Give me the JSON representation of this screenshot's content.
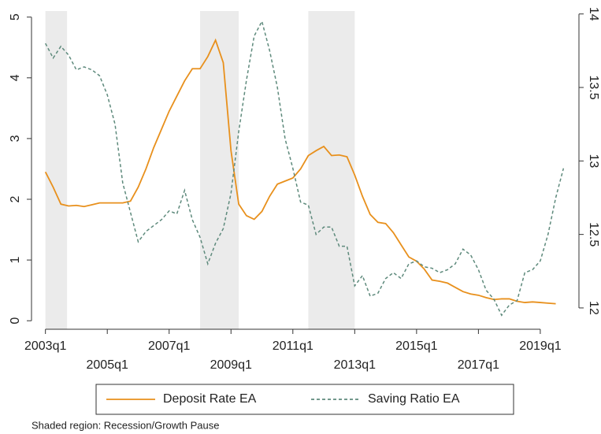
{
  "chart_data": {
    "type": "line",
    "x": [
      2003,
      2003.25,
      2003.5,
      2003.75,
      2004,
      2004.25,
      2004.5,
      2004.75,
      2005,
      2005.25,
      2005.5,
      2005.75,
      2006,
      2006.25,
      2006.5,
      2006.75,
      2007,
      2007.25,
      2007.5,
      2007.75,
      2008,
      2008.25,
      2008.5,
      2008.75,
      2009,
      2009.25,
      2009.5,
      2009.75,
      2010,
      2010.25,
      2010.5,
      2010.75,
      2011,
      2011.25,
      2011.5,
      2011.75,
      2012,
      2012.25,
      2012.5,
      2012.75,
      2013,
      2013.25,
      2013.5,
      2013.75,
      2014,
      2014.25,
      2014.5,
      2014.75,
      2015,
      2015.25,
      2015.5,
      2015.75,
      2016,
      2016.25,
      2016.5,
      2016.75,
      2017,
      2017.25,
      2017.5,
      2017.75,
      2018,
      2018.25,
      2018.5,
      2018.75,
      2019,
      2019.25,
      2019.5,
      2019.75
    ],
    "series": [
      {
        "name": "Deposit Rate EA",
        "color": "#e8901c",
        "axis": "y",
        "values": [
          2.45,
          2.2,
          1.92,
          1.89,
          1.9,
          1.88,
          1.91,
          1.94,
          1.94,
          1.94,
          1.94,
          1.97,
          2.2,
          2.5,
          2.85,
          3.15,
          3.45,
          3.7,
          3.95,
          4.15,
          4.15,
          4.35,
          4.62,
          4.25,
          2.8,
          1.92,
          1.73,
          1.67,
          1.8,
          2.05,
          2.25,
          2.3,
          2.35,
          2.5,
          2.72,
          2.8,
          2.87,
          2.72,
          2.73,
          2.7,
          2.4,
          2.05,
          1.75,
          1.62,
          1.6,
          1.45,
          1.25,
          1.05,
          0.98,
          0.85,
          0.67,
          0.65,
          0.62,
          0.55,
          0.48,
          0.44,
          0.42,
          0.38,
          0.35,
          0.36,
          0.36,
          0.32,
          0.3,
          0.31,
          0.3,
          0.29,
          0.28,
          null
        ]
      },
      {
        "name": "Saving Ratio EA",
        "color": "#5e8a7c",
        "axis": "y2",
        "dashed": true,
        "values": [
          13.8,
          13.7,
          13.78,
          13.72,
          13.62,
          13.64,
          13.62,
          13.58,
          13.45,
          13.25,
          12.85,
          12.65,
          12.45,
          12.52,
          12.56,
          12.6,
          12.66,
          12.64,
          12.8,
          12.6,
          12.48,
          12.3,
          12.44,
          12.54,
          12.78,
          13.2,
          13.55,
          13.85,
          13.95,
          13.75,
          13.5,
          13.15,
          12.95,
          12.72,
          12.7,
          12.5,
          12.55,
          12.55,
          12.42,
          12.42,
          12.15,
          12.22,
          12.08,
          12.1,
          12.2,
          12.24,
          12.2,
          12.3,
          12.32,
          12.28,
          12.27,
          12.24,
          12.26,
          12.3,
          12.4,
          12.36,
          12.26,
          12.12,
          12.06,
          11.95,
          12.02,
          12.05,
          12.24,
          12.26,
          12.32,
          12.5,
          12.75,
          12.95
        ]
      }
    ],
    "shaded_regions": [
      [
        2003,
        2003.7
      ],
      [
        2008,
        2009.25
      ],
      [
        2011.5,
        2013
      ]
    ],
    "xlim": [
      2002.55,
      2020.25
    ],
    "xticks": [
      {
        "value": 2003,
        "label": "2003q1"
      },
      {
        "value": 2005,
        "label": "2005q1"
      },
      {
        "value": 2007,
        "label": "2007q1"
      },
      {
        "value": 2009,
        "label": "2009q1"
      },
      {
        "value": 2011,
        "label": "2011q1"
      },
      {
        "value": 2013,
        "label": "2013q1"
      },
      {
        "value": 2015,
        "label": "2015q1"
      },
      {
        "value": 2017,
        "label": "2017q1"
      },
      {
        "value": 2019,
        "label": "2019q1"
      }
    ],
    "ylim": [
      -0.14,
      5.1
    ],
    "yticks": [
      0,
      1,
      2,
      3,
      4,
      5
    ],
    "y2lim": [
      11.855,
      14.02
    ],
    "y2ticks": [
      12,
      12.5,
      13,
      13.5,
      14
    ],
    "grid": false,
    "note": "Shaded region: Recession/Growth Pause"
  }
}
